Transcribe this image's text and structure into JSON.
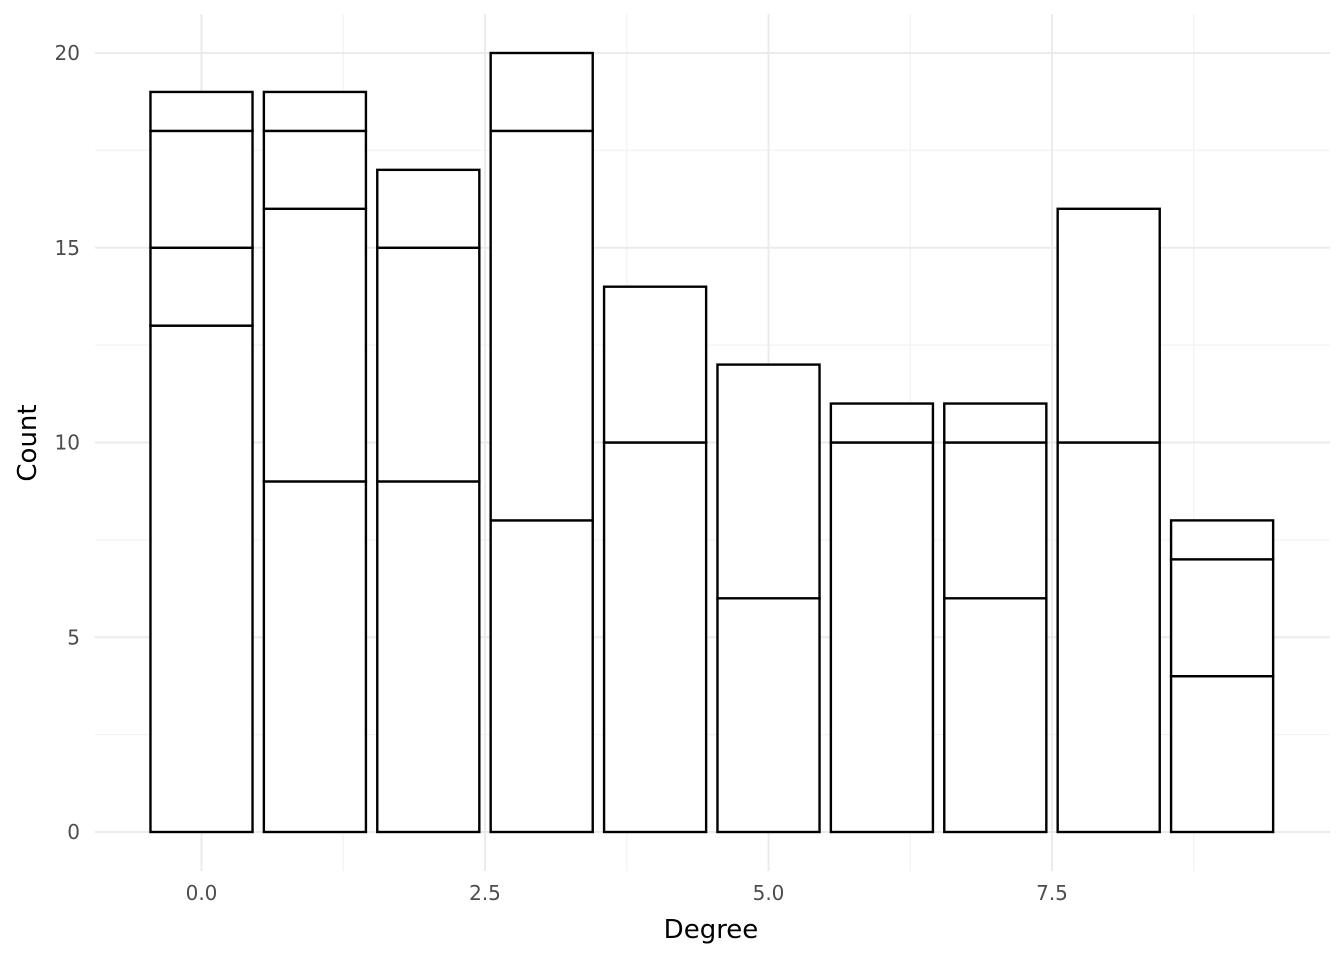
{
  "chart_data": {
    "type": "bar",
    "stacked": true,
    "title": "",
    "xlabel": "Degree",
    "ylabel": "Count",
    "xlim": [
      -0.95,
      9.95
    ],
    "ylim": [
      -0.8,
      20.9
    ],
    "x_ticks": [
      {
        "value": 0,
        "label": "0.0"
      },
      {
        "value": 2.5,
        "label": "2.5"
      },
      {
        "value": 5,
        "label": "5.0"
      },
      {
        "value": 7.5,
        "label": "7.5"
      }
    ],
    "y_ticks": [
      {
        "value": 0,
        "label": "0"
      },
      {
        "value": 5,
        "label": "5"
      },
      {
        "value": 10,
        "label": "10"
      },
      {
        "value": 15,
        "label": "15"
      },
      {
        "value": 20,
        "label": "20"
      }
    ],
    "grid": true,
    "bar_width": 0.9,
    "bars": [
      {
        "x": 0,
        "segments": [
          13,
          2,
          3,
          1
        ]
      },
      {
        "x": 1,
        "segments": [
          9,
          7,
          2,
          1
        ]
      },
      {
        "x": 2,
        "segments": [
          9,
          6,
          2
        ]
      },
      {
        "x": 3,
        "segments": [
          8,
          10,
          2
        ]
      },
      {
        "x": 4,
        "segments": [
          10,
          4
        ]
      },
      {
        "x": 5,
        "segments": [
          6,
          6
        ]
      },
      {
        "x": 6,
        "segments": [
          10,
          1
        ]
      },
      {
        "x": 7,
        "segments": [
          6,
          4,
          1
        ]
      },
      {
        "x": 8,
        "segments": [
          10,
          6
        ]
      },
      {
        "x": 9,
        "segments": [
          4,
          3,
          1
        ]
      }
    ]
  }
}
